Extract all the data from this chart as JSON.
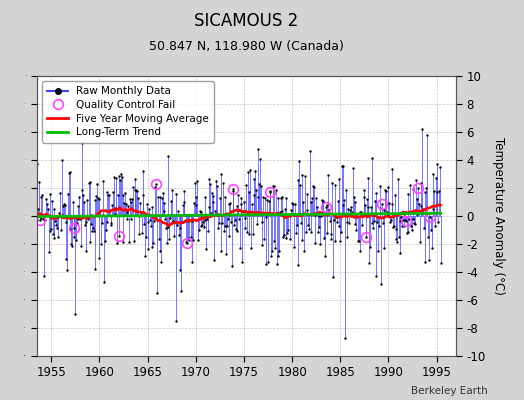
{
  "title": "SICAMOUS 2",
  "subtitle": "50.847 N, 118.980 W (Canada)",
  "ylabel": "Temperature Anomaly (°C)",
  "watermark": "Berkeley Earth",
  "xlim": [
    1953.5,
    1997
  ],
  "ylim": [
    -10,
    10
  ],
  "xticks": [
    1955,
    1960,
    1965,
    1970,
    1975,
    1980,
    1985,
    1990,
    1995
  ],
  "yticks": [
    -10,
    -8,
    -6,
    -4,
    -2,
    0,
    2,
    4,
    6,
    8,
    10
  ],
  "bg_color": "#d4d4d4",
  "plot_bg_color": "#ffffff",
  "line_color": "#4444ff",
  "dot_color": "#000000",
  "qc_fail_color": "#ff44ff",
  "moving_avg_color": "#ff0000",
  "trend_color": "#00bb00",
  "seed": 99,
  "n_months": 504,
  "start_year": 1953,
  "start_month": 7,
  "trend_slope": 0.001
}
